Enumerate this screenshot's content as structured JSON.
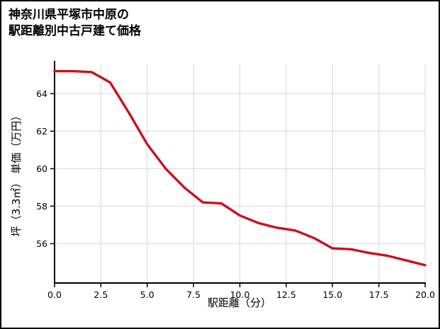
{
  "page": {
    "title_line1": "神奈川県平塚市中原の",
    "title_line2": "駅距離別中古戸建て価格"
  },
  "chart_data": {
    "type": "line",
    "title": "神奈川県平塚市中原の駅距離別中古戸建て価格",
    "xlabel": "駅距離（分）",
    "ylabel": "坪（3.3㎡） 単価（万円）",
    "x": [
      0,
      1,
      2,
      3,
      4,
      5,
      6,
      7,
      8,
      9,
      10,
      11,
      12,
      13,
      14,
      15,
      16,
      17,
      18,
      19,
      20
    ],
    "values": [
      65.2,
      65.2,
      65.15,
      64.6,
      63.0,
      61.3,
      60.0,
      59.0,
      58.2,
      58.15,
      57.5,
      57.1,
      56.85,
      56.7,
      56.3,
      55.75,
      55.7,
      55.5,
      55.35,
      55.1,
      54.85
    ],
    "xlim": [
      0,
      20
    ],
    "ylim": [
      53.9,
      65.6
    ],
    "xticks": [
      0,
      2.5,
      5,
      7.5,
      10,
      12.5,
      15,
      17.5,
      20
    ],
    "xtick_labels": [
      "0.0",
      "2.5",
      "5.0",
      "7.5",
      "10.0",
      "12.5",
      "15.0",
      "17.5",
      "20.0"
    ],
    "yticks": [
      56,
      58,
      60,
      62,
      64
    ],
    "ytick_labels": [
      "56",
      "58",
      "60",
      "62",
      "64"
    ],
    "line_color": "#c9121e",
    "grid": true,
    "grid_color": "#d9d9d9",
    "axis_color": "#000000",
    "legend": "none"
  }
}
